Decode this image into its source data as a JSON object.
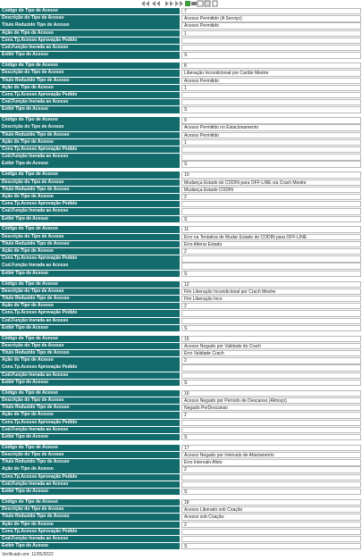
{
  "fields": [
    "Código do Tipo de Acesso",
    "Descrição do Tipo de Acesso",
    "Título Reduzido Tipo de Acesso",
    "Ação do Tipo de Acesso",
    "Cons.Tp.Acesso Aprovação Pedido",
    "Cod.Função Inerada ao Acesso",
    "Exibir Tipo de Acesso"
  ],
  "records": [
    [
      "7",
      "Acesso Permitido (A Serviço)",
      "Acesso Permitido",
      "1",
      null,
      null,
      "S"
    ],
    [
      "8",
      "Liberação Incondicional por Cartão Mestre",
      "Acesso Permitido",
      "1",
      null,
      null,
      "S"
    ],
    [
      "9",
      "Acesso Permitido no Estacionamento",
      "Acesso Permitido",
      "1",
      null,
      null,
      "S"
    ],
    [
      "10",
      "Mudança Estado do CODIN para OFF-LINE via Crach  Mestre",
      "Mudança Estado CODIN",
      "2",
      null,
      null,
      "S"
    ],
    [
      "11",
      "Erro na Tentativa de Mudar Estado do CODIN para OFF-LINE",
      "Erro Alterar Estado",
      "2",
      null,
      null,
      "S"
    ],
    [
      "12",
      "Fim Liberação Incondicional por Crach  Mestre",
      "Fim Liberação Inco",
      "2",
      null,
      null,
      "S"
    ],
    [
      "15",
      "Acesso Negado por Validade do Crach",
      "Erro Validade Crach",
      "2",
      null,
      null,
      "S"
    ],
    [
      "16",
      "Acesso Negado por Período de Descanso (Almoço)",
      "Negado PerDescanso",
      "2",
      null,
      null,
      "S"
    ],
    [
      "17",
      "Acesso Negado por Intervalo de Afastamento",
      "Erro Intervalo Afsto",
      "2",
      null,
      null,
      "S"
    ],
    [
      "18",
      "Acesso Liberado sob Coação",
      "Acesso sob Coação",
      "2",
      null,
      null,
      "S"
    ]
  ],
  "footer": "Verificado em: 11/05/2022"
}
